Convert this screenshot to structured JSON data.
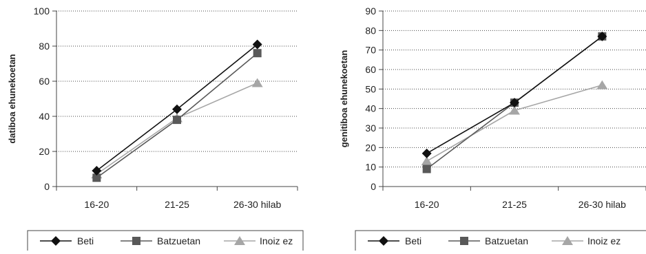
{
  "chart_data": [
    {
      "type": "line",
      "ylabel": "datiboa ehunekoetan",
      "categories": [
        "16-20",
        "21-25",
        "26-30 hilab"
      ],
      "ylim": [
        0,
        100
      ],
      "yticks": [
        0,
        20,
        40,
        60,
        80,
        100
      ],
      "grid": "horizontal dotted",
      "legend_position": "bottom",
      "series": [
        {
          "name": "Beti",
          "values": [
            9,
            44,
            81
          ],
          "color": "#111111",
          "marker": "diamond"
        },
        {
          "name": "Batzuetan",
          "values": [
            5,
            38,
            76
          ],
          "color": "#595959",
          "marker": "square"
        },
        {
          "name": "Inoiz ez",
          "values": [
            7,
            39,
            59
          ],
          "color": "#a6a6a6",
          "marker": "triangle"
        }
      ]
    },
    {
      "type": "line",
      "ylabel": "genitiboa ehunekoetan",
      "categories": [
        "16-20",
        "21-25",
        "26-30 hilab"
      ],
      "ylim": [
        0,
        90
      ],
      "yticks": [
        0,
        10,
        20,
        30,
        40,
        50,
        60,
        70,
        80,
        90
      ],
      "grid": "horizontal dotted",
      "legend_position": "bottom",
      "series": [
        {
          "name": "Beti",
          "values": [
            17,
            43,
            77
          ],
          "color": "#111111",
          "marker": "diamond"
        },
        {
          "name": "Batzuetan",
          "values": [
            9,
            43,
            77
          ],
          "color": "#595959",
          "marker": "square"
        },
        {
          "name": "Inoiz ez",
          "values": [
            13,
            39,
            52
          ],
          "color": "#a6a6a6",
          "marker": "triangle"
        }
      ]
    }
  ]
}
